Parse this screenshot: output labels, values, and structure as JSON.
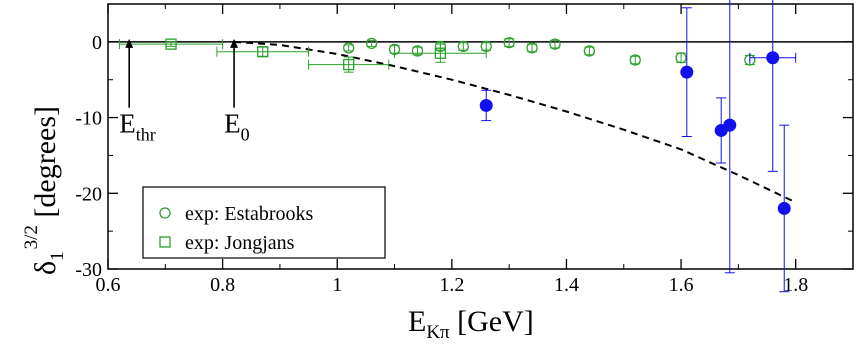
{
  "chart_data": {
    "type": "scatter",
    "xlabel": {
      "main": "E",
      "sub": "Kπ",
      "rest": " [GeV]"
    },
    "ylabel": {
      "main": "δ",
      "sub": "1",
      "sup": "3/2",
      "rest": " [degrees]"
    },
    "xlim": [
      0.6,
      1.9
    ],
    "ylim": [
      -30,
      5
    ],
    "xticks": [
      0.6,
      0.8,
      1.0,
      1.2,
      1.4,
      1.6,
      1.8
    ],
    "xtick_labels": [
      "0.6",
      "0.8",
      "1",
      "1.2",
      "1.4",
      "1.6",
      "1.8"
    ],
    "yticks": [
      0,
      -10,
      -20,
      -30
    ],
    "ytick_labels": [
      "0",
      "-10",
      "-20",
      "-30"
    ],
    "grid": false,
    "zero_line": true,
    "legend_position": "bottom-left",
    "colors": {
      "green": "#2ca02c",
      "blue": "#1010ee",
      "curve": "#000000"
    },
    "series": [
      {
        "name": "exp: Estabrooks",
        "marker": "open-circle",
        "color": "#2ca02c",
        "points": [
          {
            "x": 1.02,
            "y": -0.8,
            "yerr": 0.4
          },
          {
            "x": 1.06,
            "y": -0.2,
            "yerr": 0.4
          },
          {
            "x": 1.1,
            "y": -1.0,
            "yerr": 0.5
          },
          {
            "x": 1.14,
            "y": -1.2,
            "yerr": 0.5
          },
          {
            "x": 1.18,
            "y": -0.6,
            "yerr": 0.5
          },
          {
            "x": 1.22,
            "y": -0.6,
            "yerr": 0.5
          },
          {
            "x": 1.26,
            "y": -0.6,
            "yerr": 0.5
          },
          {
            "x": 1.3,
            "y": -0.1,
            "yerr": 0.5
          },
          {
            "x": 1.34,
            "y": -0.8,
            "yerr": 0.5
          },
          {
            "x": 1.38,
            "y": -0.3,
            "yerr": 0.5
          },
          {
            "x": 1.44,
            "y": -1.2,
            "yerr": 0.5
          },
          {
            "x": 1.52,
            "y": -2.4,
            "yerr": 0.5
          },
          {
            "x": 1.6,
            "y": -2.1,
            "yerr": 0.6
          },
          {
            "x": 1.72,
            "y": -2.4,
            "yerr": 0.6
          }
        ]
      },
      {
        "name": "exp: Jongjans",
        "marker": "open-square",
        "color": "#2ca02c",
        "points": [
          {
            "x": 0.71,
            "y": -0.3,
            "xerr": 0.09,
            "yerr": 0.3
          },
          {
            "x": 0.87,
            "y": -1.3,
            "xerr": 0.08,
            "yerr": 0.6
          },
          {
            "x": 1.02,
            "y": -3.0,
            "xerr": 0.07,
            "yerr": 1.0
          },
          {
            "x": 1.18,
            "y": -1.5,
            "xerr": 0.08,
            "yerr": 1.2
          }
        ]
      },
      {
        "name": "",
        "marker": "filled-circle",
        "color": "#1010ee",
        "points": [
          {
            "x": 1.26,
            "y": -8.4,
            "yerr": 2.0
          },
          {
            "x": 1.61,
            "y": -4.0,
            "yerr": 8.5
          },
          {
            "x": 1.67,
            "y": -11.7,
            "yerr": 4.3
          },
          {
            "x": 1.685,
            "y": -11.0,
            "yerr": 19.5
          },
          {
            "x": 1.76,
            "y": -2.1,
            "xerr": 0.04,
            "yerr": 15.0
          },
          {
            "x": 1.78,
            "y": -22.0,
            "yerr": 11.0
          }
        ]
      }
    ],
    "curve": {
      "style": "dashed",
      "points": [
        {
          "x": 0.82,
          "y": 0.0
        },
        {
          "x": 0.9,
          "y": -0.4
        },
        {
          "x": 1.0,
          "y": -1.6
        },
        {
          "x": 1.1,
          "y": -3.2
        },
        {
          "x": 1.2,
          "y": -5.0
        },
        {
          "x": 1.3,
          "y": -7.0
        },
        {
          "x": 1.4,
          "y": -9.2
        },
        {
          "x": 1.5,
          "y": -11.6
        },
        {
          "x": 1.6,
          "y": -14.2
        },
        {
          "x": 1.7,
          "y": -17.6
        },
        {
          "x": 1.8,
          "y": -21.2
        }
      ]
    },
    "annotations": [
      {
        "main": "E",
        "sub": "thr",
        "x": 0.637,
        "arrow_from_y": -8.7,
        "arrow_to_y": 0.4
      },
      {
        "main": "E",
        "sub": "0",
        "x": 0.82,
        "arrow_from_y": -8.7,
        "arrow_to_y": 0.4
      }
    ]
  }
}
